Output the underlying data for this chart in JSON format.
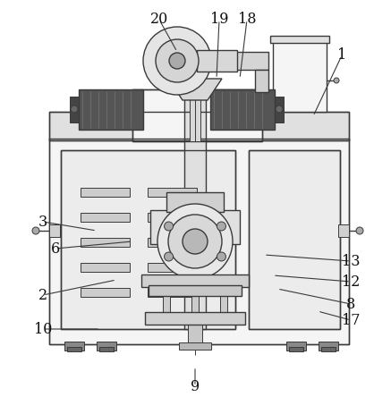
{
  "background_color": "#ffffff",
  "line_color": "#3a3a3a",
  "figsize": [
    4.37,
    4.44
  ],
  "dpi": 100,
  "annotations": [
    [
      "1",
      382,
      62,
      350,
      130
    ],
    [
      "2",
      48,
      330,
      130,
      313
    ],
    [
      "3",
      48,
      248,
      108,
      258
    ],
    [
      "6",
      62,
      278,
      148,
      270
    ],
    [
      "8",
      392,
      340,
      310,
      323
    ],
    [
      "9",
      218,
      432,
      218,
      410
    ],
    [
      "10",
      48,
      368,
      112,
      368
    ],
    [
      "12",
      392,
      315,
      305,
      308
    ],
    [
      "13",
      392,
      292,
      295,
      285
    ],
    [
      "17",
      392,
      358,
      355,
      348
    ],
    [
      "18",
      276,
      22,
      268,
      88
    ],
    [
      "19",
      245,
      22,
      242,
      88
    ],
    [
      "20",
      178,
      22,
      198,
      58
    ]
  ]
}
